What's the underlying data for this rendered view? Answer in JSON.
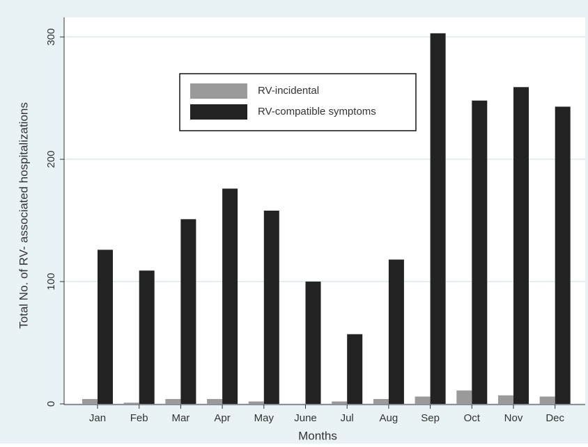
{
  "chart_data": {
    "type": "bar",
    "x_label": "Months",
    "y_label": "Total No. of RV- associated hospitalizations",
    "categories": [
      "Jan",
      "Feb",
      "Mar",
      "Apr",
      "May",
      "June",
      "Jul",
      "Aug",
      "Sep",
      "Oct",
      "Nov",
      "Dec"
    ],
    "series": [
      {
        "name": "RV-incidental",
        "color": "#9a9a9a",
        "values": [
          4,
          1,
          4,
          4,
          2,
          0,
          2,
          4,
          6,
          11,
          7,
          6
        ]
      },
      {
        "name": "RV-compatible symptoms",
        "color": "#222222",
        "values": [
          126,
          109,
          151,
          176,
          158,
          100,
          57,
          118,
          303,
          248,
          259,
          243
        ]
      }
    ],
    "ylim": [
      0,
      316
    ],
    "yticks": [
      0,
      100,
      200,
      300
    ],
    "grid": true,
    "legend": "upper center"
  }
}
